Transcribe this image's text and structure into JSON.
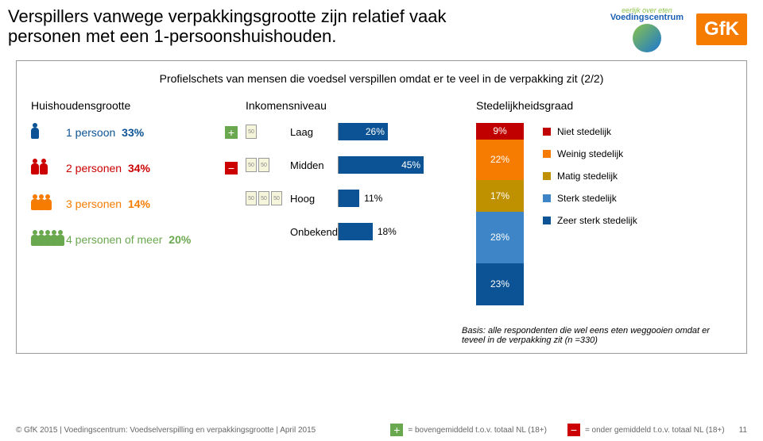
{
  "title": "Verspillers vanwege verpakkingsgrootte zijn relatief vaak personen met een 1-persoonshuishouden.",
  "subtitle": "Profielschets van mensen die voedsel verspillen omdat er te veel in de verpakking zit (2/2)",
  "logos": {
    "vc_tag": "eerlijk over eten",
    "vc_word": "Voedingscentrum",
    "gfk": "GfK"
  },
  "household": {
    "header": "Huishoudensgrootte",
    "rows": [
      {
        "label": "1 persoon",
        "pct": "33%",
        "icon_color": "#0b5394",
        "count": 1,
        "indicator": "plus"
      },
      {
        "label": "2 personen",
        "pct": "34%",
        "icon_color": "#cc0000",
        "count": 2,
        "indicator": "minus"
      },
      {
        "label": "3 personen",
        "pct": "14%",
        "icon_color": "#f57c00",
        "count": 3,
        "indicator": null
      },
      {
        "label": "4 personen of meer",
        "pct": "20%",
        "icon_color": "#6aa84f",
        "count": 5,
        "indicator": null
      }
    ]
  },
  "income": {
    "header": "Inkomensniveau",
    "bar_color": "#0b5394",
    "max_pct": 50,
    "rows": [
      {
        "label": "Laag",
        "pct": 26,
        "pct_text": "26%",
        "money": 1
      },
      {
        "label": "Midden",
        "pct": 45,
        "pct_text": "45%",
        "money": 2
      },
      {
        "label": "Hoog",
        "pct": 11,
        "pct_text": "11%",
        "money": 3
      },
      {
        "label": "Onbekend",
        "pct": 18,
        "pct_text": "18%",
        "money": 0
      }
    ]
  },
  "urbanity": {
    "header": "Stedelijkheidsgraad",
    "segments": [
      {
        "label": "Niet stedelijk",
        "pct": 9,
        "pct_text": "9%",
        "color": "#c00000"
      },
      {
        "label": "Weinig stedelijk",
        "pct": 22,
        "pct_text": "22%",
        "color": "#f57c00"
      },
      {
        "label": "Matig stedelijk",
        "pct": 17,
        "pct_text": "17%",
        "color": "#bf9000"
      },
      {
        "label": "Sterk stedelijk",
        "pct": 28,
        "pct_text": "28%",
        "color": "#3d85c6"
      },
      {
        "label": "Zeer sterk stedelijk",
        "pct": 23,
        "pct_text": "23%",
        "color": "#0b5394"
      }
    ]
  },
  "basis": "Basis: alle respondenten die wel eens eten weggooien omdat er teveel in de verpakking zit (n =330)",
  "footer": {
    "source": "© GfK 2015 | Voedingscentrum: Voedselverspilling en verpakkingsgrootte | April 2015",
    "above": "= bovengemiddeld t.o.v. totaal NL (18+)",
    "below": "= onder gemiddeld t.o.v. totaal NL (18+)",
    "page": "11"
  },
  "indicator_colors": {
    "plus": "#6aa84f",
    "minus": "#cc0000"
  }
}
